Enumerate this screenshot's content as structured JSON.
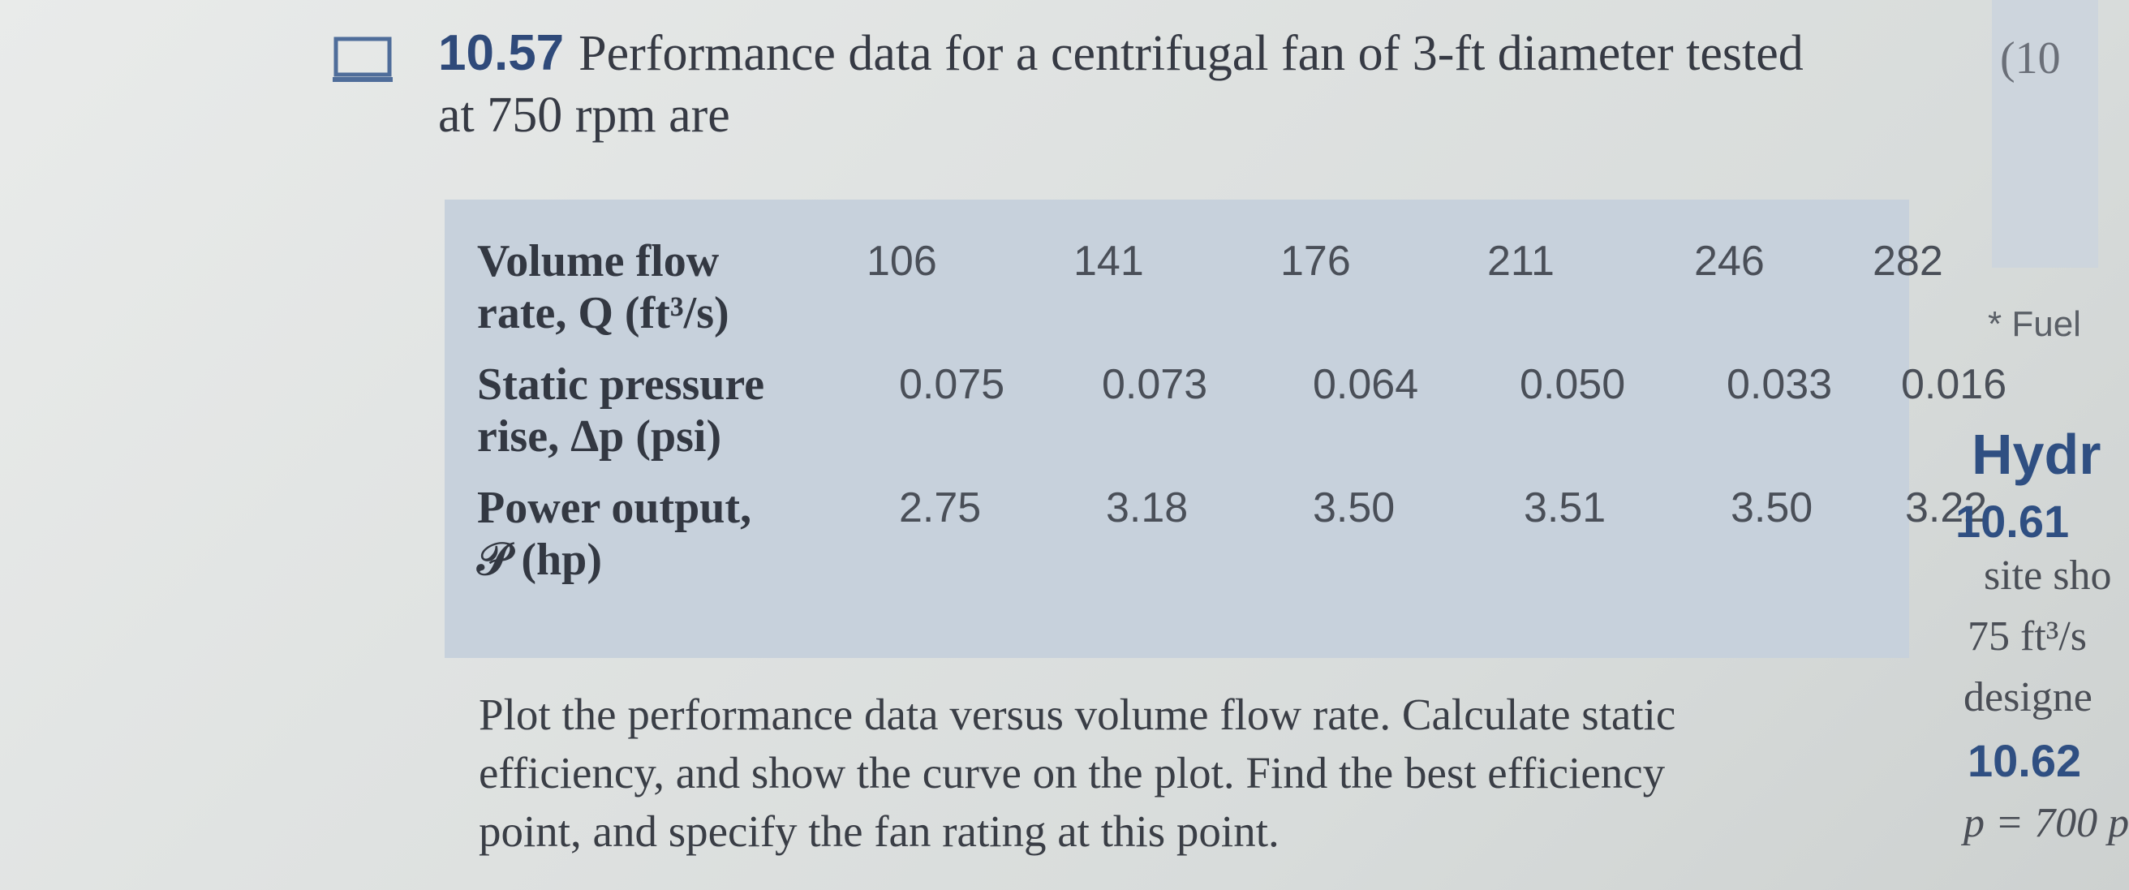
{
  "problem": {
    "number": "10.57",
    "title_line1": "Performance data for a centrifugal fan of 3-ft diameter tested",
    "title_line2": "at 750 rpm are"
  },
  "table": {
    "rows": [
      {
        "label_line1": "Volume flow",
        "label_line2": "rate, Q (ft³/s)",
        "values": [
          "106",
          "141",
          "176",
          "211",
          "246",
          "282"
        ]
      },
      {
        "label_line1": "Static pressure",
        "label_line2": "rise, Δp (psi)",
        "values": [
          "0.075",
          "0.073",
          "0.064",
          "0.050",
          "0.033",
          "0.016"
        ]
      },
      {
        "label_line1": "Power output,",
        "label_line2": "𝒫 (hp)",
        "values": [
          "2.75",
          "3.18",
          "3.50",
          "3.51",
          "3.50",
          "3.22"
        ]
      }
    ]
  },
  "instructions": {
    "line1": "Plot the performance data versus volume flow rate. Calculate static",
    "line2": "efficiency, and show the curve on the plot. Find the best efficiency",
    "line3": "point, and specify the fan rating at this point."
  },
  "right_column": {
    "top_text": "(10",
    "footnote": "* Fuel",
    "heading": "Hydr",
    "item1_number": "10.61",
    "item1_line1": "site sho",
    "item1_line2": "75 ft³/s",
    "item1_line3": "designe",
    "item2_number": "10.62",
    "item2_line1": "p = 700 p"
  },
  "icons": {
    "computer": "computer-monitor-icon"
  }
}
